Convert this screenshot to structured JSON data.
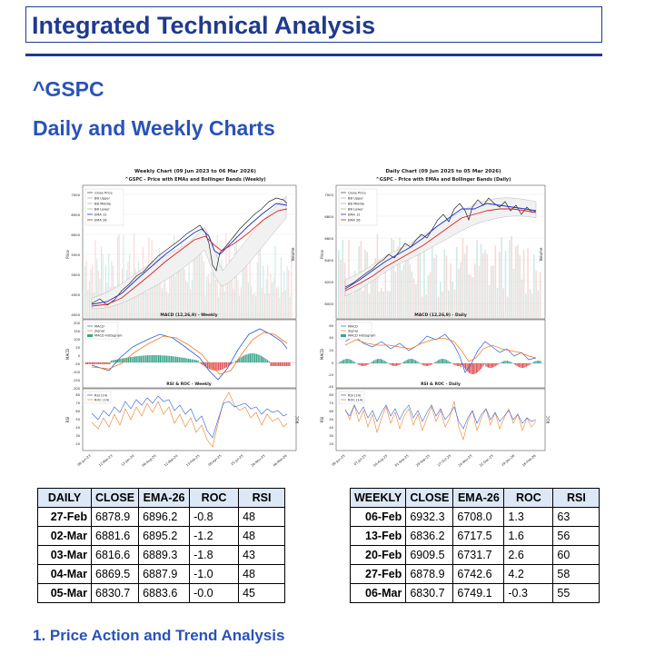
{
  "header": {
    "title": "Integrated Technical Analysis"
  },
  "ticker": "^GSPC",
  "section_title": "Daily and Weekly Charts",
  "subsection_title": "1. Price Action and Trend Analysis",
  "colors": {
    "heading": "#1f3a8f",
    "close": "#222222",
    "bb": "#999999",
    "ema12": "#1f2fd0",
    "ema26": "#e02020",
    "macd": "#2a5bd8",
    "signal": "#f07a20",
    "hist_pos": "#3aa58c",
    "hist_neg": "#e05050",
    "rsi": "#2a5bd8",
    "roc": "#f07a20",
    "table_header_bg": "#dde8f7"
  },
  "charts": [
    {
      "id": "weekly",
      "title": "Weekly Chart (09 Jun 2023 to 06 Mar 2026)",
      "subtitle": "^GSPC - Price with EMAs and Bollinger Bands (Weekly)",
      "legend": [
        "Close Price",
        "BB Upper",
        "BB Middle",
        "BB Lower",
        "EMA 12",
        "EMA 26"
      ],
      "price_ylabel": "Price",
      "volume_ylabel": "Volume",
      "price_ticks": [
        "7000",
        "6500",
        "6000",
        "5500",
        "5000",
        "4500",
        "4000"
      ],
      "macd_title": "MACD (12,26,9) - Weekly",
      "macd_ylabel": "MACD",
      "macd_legend": [
        "MACD",
        "Signal",
        "MACD Histogram"
      ],
      "macd_ticks": [
        "200",
        "150",
        "100",
        "50",
        "0",
        "-50",
        "-100",
        "-150",
        "-200"
      ],
      "rsi_title": "RSI & ROC - Weekly",
      "rsi_legend": [
        "RSI (14)",
        "ROC (14)"
      ],
      "rsi_ylabel": "RSI",
      "roc_ylabel": "ROC",
      "rsi_ticks": [
        "80",
        "70",
        "60",
        "50",
        "40",
        "30",
        "20"
      ],
      "x_labels": [
        "09-Jun-23",
        "12-Mar-23",
        "12-Jan-24",
        "06-Aug-24",
        "12-Mar-24",
        "13-Feb-25",
        "06-Apr-25",
        "25-Jul-25",
        "26-Nov-25",
        "06-Mar-26"
      ]
    },
    {
      "id": "daily",
      "title": "Daily Chart (09 Jun 2025 to 05 Mar 2026)",
      "subtitle": "^GSPC - Price with EMAs and Bollinger Bands (Daily)",
      "legend": [
        "Close Price",
        "BB Upper",
        "BB Middle",
        "BB Lower",
        "EMA 12",
        "EMA 26"
      ],
      "price_ylabel": "Price",
      "volume_ylabel": "Volume",
      "price_ticks": [
        "7000",
        "6800",
        "6600",
        "6400",
        "6200",
        "6000"
      ],
      "macd_title": "MACD (12,26,9) - Daily",
      "macd_ylabel": "MACD",
      "macd_legend": [
        "MACD",
        "Signal",
        "MACD Histogram"
      ],
      "macd_ticks": [
        "60",
        "40",
        "20",
        "0",
        "-20",
        "-40"
      ],
      "rsi_title": "RSI & ROC - Daily",
      "rsi_legend": [
        "RSI (14)",
        "ROC (14)"
      ],
      "rsi_ylabel": "RSI",
      "roc_ylabel": "ROC",
      "rsi_ticks": [
        "80",
        "70",
        "60",
        "50",
        "40",
        "30",
        "20"
      ],
      "x_labels": [
        "09-Jun-25",
        "07-Jul-25",
        "04-Aug-25",
        "01-Sep-25",
        "29-Sep-25",
        "27-Oct-25",
        "24-Nov-25",
        "22-Dec-25",
        "19-Jan-26",
        "16-Feb-26"
      ]
    }
  ],
  "daily_table": {
    "headers": [
      "DAILY",
      "CLOSE",
      "EMA-26",
      "ROC",
      "RSI"
    ],
    "rows": [
      [
        "27-Feb",
        "6878.9",
        "6896.2",
        "-0.8",
        "48"
      ],
      [
        "02-Mar",
        "6881.6",
        "6895.2",
        "-1.2",
        "48"
      ],
      [
        "03-Mar",
        "6816.6",
        "6889.3",
        "-1.8",
        "43"
      ],
      [
        "04-Mar",
        "6869.5",
        "6887.9",
        "-1.0",
        "48"
      ],
      [
        "05-Mar",
        "6830.7",
        "6883.6",
        "-0.0",
        "45"
      ]
    ]
  },
  "weekly_table": {
    "headers": [
      "WEEKLY",
      "CLOSE",
      "EMA-26",
      "ROC",
      "RSI"
    ],
    "rows": [
      [
        "06-Feb",
        "6932.3",
        "6708.0",
        "1.3",
        "63"
      ],
      [
        "13-Feb",
        "6836.2",
        "6717.5",
        "1.6",
        "56"
      ],
      [
        "20-Feb",
        "6909.5",
        "6731.7",
        "2.6",
        "60"
      ],
      [
        "27-Feb",
        "6878.9",
        "6742.6",
        "4.2",
        "58"
      ],
      [
        "06-Mar",
        "6830.7",
        "6749.1",
        "-0.3",
        "55"
      ]
    ]
  }
}
